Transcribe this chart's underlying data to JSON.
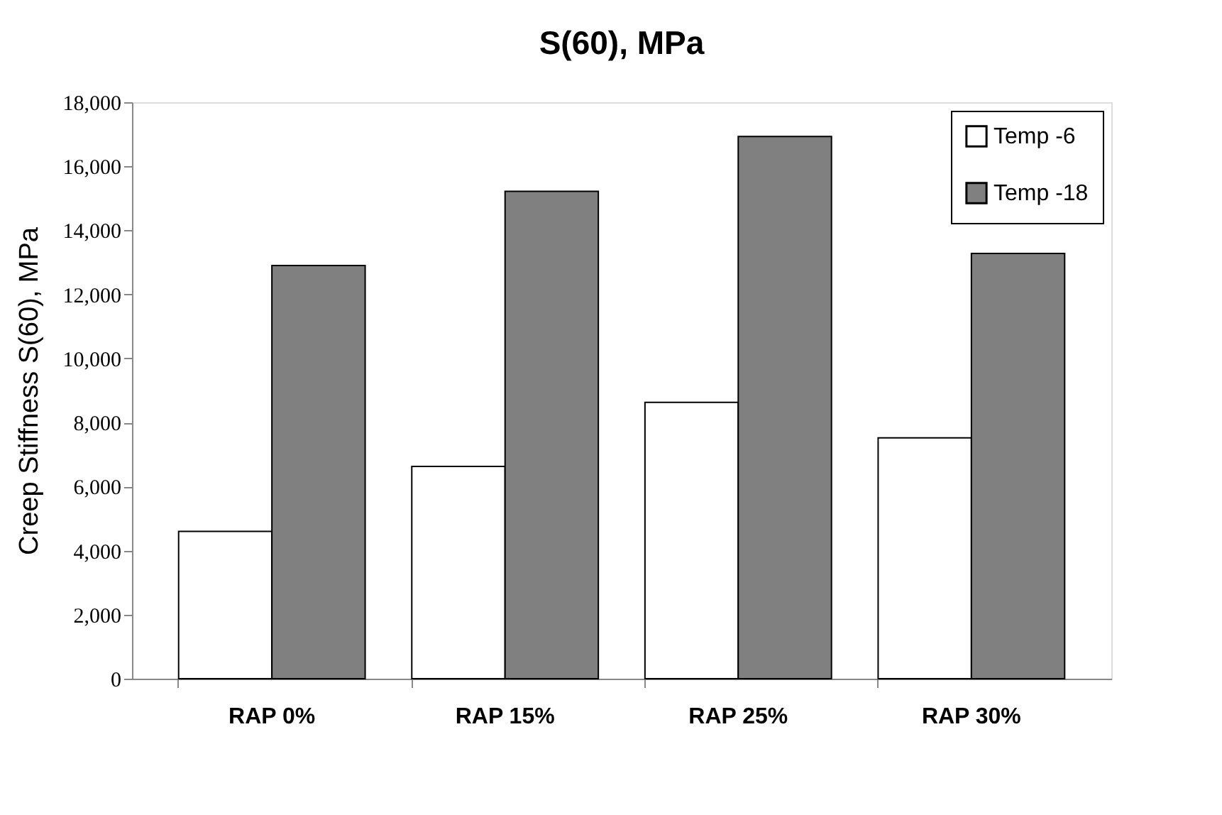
{
  "chart_data": {
    "type": "bar",
    "title": "S(60), MPa",
    "ylabel": "Creep Stiffness S(60), MPa",
    "categories": [
      "RAP 0%",
      "RAP 15%",
      "RAP 25%",
      "RAP 30%"
    ],
    "series": [
      {
        "name": "Temp -6",
        "color": "#ffffff",
        "values": [
          4600,
          6630,
          8630,
          7520
        ]
      },
      {
        "name": "Temp -18",
        "color": "#808080",
        "values": [
          12900,
          15220,
          16930,
          13280
        ]
      }
    ],
    "ylim": [
      0,
      18000
    ],
    "yticks": [
      0,
      {
        "value": 2000,
        "label": "2,000"
      },
      {
        "value": 4000,
        "label": "4,000"
      },
      {
        "value": 6000,
        "label": "6,000"
      },
      {
        "value": 8000,
        "label": "8,000"
      },
      {
        "value": 10000,
        "label": "10,000"
      },
      {
        "value": 12000,
        "label": "12,000"
      },
      {
        "value": 14000,
        "label": "14,000"
      },
      {
        "value": 16000,
        "label": "16,000"
      },
      {
        "value": 18000,
        "label": "18,000"
      }
    ],
    "grid": false,
    "legend": "top right"
  }
}
